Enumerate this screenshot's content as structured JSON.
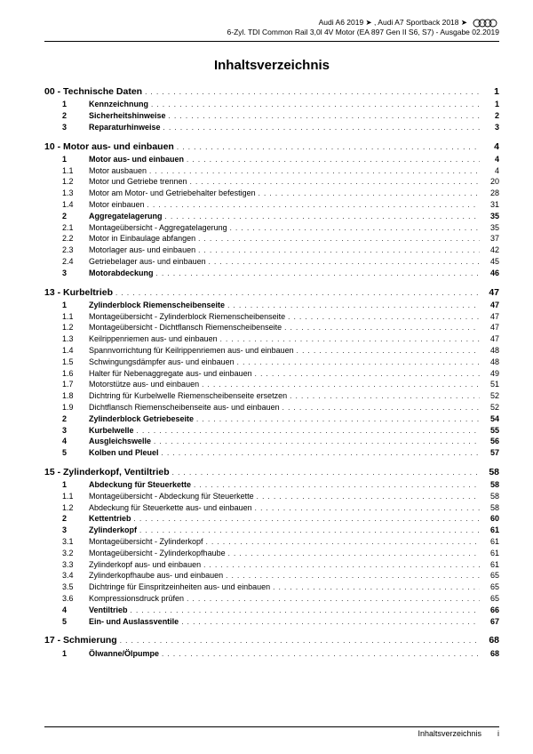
{
  "header": {
    "line1a": "Audi A6 2019 ➤ , Audi A7 Sportback 2018 ➤",
    "line2": "6-Zyl. TDI Common Rail 3,0l 4V Motor (EA 897 Gen II S6, S7) - Ausgabe 02.2019"
  },
  "title": "Inhaltsverzeichnis",
  "footer": {
    "label": "Inhaltsverzeichnis",
    "page": "i"
  },
  "sections": [
    {
      "chapter": "00 - Technische Daten",
      "page": "1",
      "items": [
        {
          "n": "1",
          "t": "Kennzeichnung",
          "p": "1",
          "b": true
        },
        {
          "n": "2",
          "t": "Sicherheitshinweise",
          "p": "2",
          "b": true
        },
        {
          "n": "3",
          "t": "Reparaturhinweise",
          "p": "3",
          "b": true
        }
      ]
    },
    {
      "chapter": "10 - Motor aus- und einbauen",
      "page": "4",
      "items": [
        {
          "n": "1",
          "t": "Motor aus- und einbauen",
          "p": "4",
          "b": true
        },
        {
          "n": "1.1",
          "t": "Motor ausbauen",
          "p": "4"
        },
        {
          "n": "1.2",
          "t": "Motor und Getriebe trennen",
          "p": "20"
        },
        {
          "n": "1.3",
          "t": "Motor am Motor- und Getriebehalter befestigen",
          "p": "28"
        },
        {
          "n": "1.4",
          "t": "Motor einbauen",
          "p": "31"
        },
        {
          "n": "2",
          "t": "Aggregatelagerung",
          "p": "35",
          "b": true
        },
        {
          "n": "2.1",
          "t": "Montageübersicht - Aggregatelagerung",
          "p": "35"
        },
        {
          "n": "2.2",
          "t": "Motor in Einbaulage abfangen",
          "p": "37"
        },
        {
          "n": "2.3",
          "t": "Motorlager aus- und einbauen",
          "p": "42"
        },
        {
          "n": "2.4",
          "t": "Getriebelager aus- und einbauen",
          "p": "45"
        },
        {
          "n": "3",
          "t": "Motorabdeckung",
          "p": "46",
          "b": true
        }
      ]
    },
    {
      "chapter": "13 - Kurbeltrieb",
      "page": "47",
      "items": [
        {
          "n": "1",
          "t": "Zylinderblock Riemenscheibenseite",
          "p": "47",
          "b": true
        },
        {
          "n": "1.1",
          "t": "Montageübersicht - Zylinderblock Riemenscheibenseite",
          "p": "47"
        },
        {
          "n": "1.2",
          "t": "Montageübersicht - Dichtflansch Riemenscheibenseite",
          "p": "47"
        },
        {
          "n": "1.3",
          "t": "Keilrippenriemen aus- und einbauen",
          "p": "47"
        },
        {
          "n": "1.4",
          "t": "Spannvorrichtung für Keilrippenriemen aus- und einbauen",
          "p": "48"
        },
        {
          "n": "1.5",
          "t": "Schwingungsdämpfer aus- und einbauen",
          "p": "48"
        },
        {
          "n": "1.6",
          "t": "Halter für Nebenaggregate aus- und einbauen",
          "p": "49"
        },
        {
          "n": "1.7",
          "t": "Motorstütze aus- und einbauen",
          "p": "51"
        },
        {
          "n": "1.8",
          "t": "Dichtring für Kurbelwelle Riemenscheibenseite ersetzen",
          "p": "52"
        },
        {
          "n": "1.9",
          "t": "Dichtflansch Riemenscheibenseite aus- und einbauen",
          "p": "52"
        },
        {
          "n": "2",
          "t": "Zylinderblock Getriebeseite",
          "p": "54",
          "b": true
        },
        {
          "n": "3",
          "t": "Kurbelwelle",
          "p": "55",
          "b": true
        },
        {
          "n": "4",
          "t": "Ausgleichswelle",
          "p": "56",
          "b": true
        },
        {
          "n": "5",
          "t": "Kolben und Pleuel",
          "p": "57",
          "b": true
        }
      ]
    },
    {
      "chapter": "15 - Zylinderkopf, Ventiltrieb",
      "page": "58",
      "items": [
        {
          "n": "1",
          "t": "Abdeckung für Steuerkette",
          "p": "58",
          "b": true
        },
        {
          "n": "1.1",
          "t": "Montageübersicht - Abdeckung für Steuerkette",
          "p": "58"
        },
        {
          "n": "1.2",
          "t": "Abdeckung für Steuerkette aus- und einbauen",
          "p": "58"
        },
        {
          "n": "2",
          "t": "Kettentrieb",
          "p": "60",
          "b": true
        },
        {
          "n": "3",
          "t": "Zylinderkopf",
          "p": "61",
          "b": true
        },
        {
          "n": "3.1",
          "t": "Montageübersicht - Zylinderkopf",
          "p": "61"
        },
        {
          "n": "3.2",
          "t": "Montageübersicht - Zylinderkopfhaube",
          "p": "61"
        },
        {
          "n": "3.3",
          "t": "Zylinderkopf aus- und einbauen",
          "p": "61"
        },
        {
          "n": "3.4",
          "t": "Zylinderkopfhaube aus- und einbauen",
          "p": "65"
        },
        {
          "n": "3.5",
          "t": "Dichtringe für Einspritzeinheiten aus- und einbauen",
          "p": "65"
        },
        {
          "n": "3.6",
          "t": "Kompressionsdruck prüfen",
          "p": "65"
        },
        {
          "n": "4",
          "t": "Ventiltrieb",
          "p": "66",
          "b": true
        },
        {
          "n": "5",
          "t": "Ein- und Auslassventile",
          "p": "67",
          "b": true
        }
      ]
    },
    {
      "chapter": "17 - Schmierung",
      "page": "68",
      "items": [
        {
          "n": "1",
          "t": "Ölwanne/Ölpumpe",
          "p": "68",
          "b": true
        }
      ]
    }
  ]
}
